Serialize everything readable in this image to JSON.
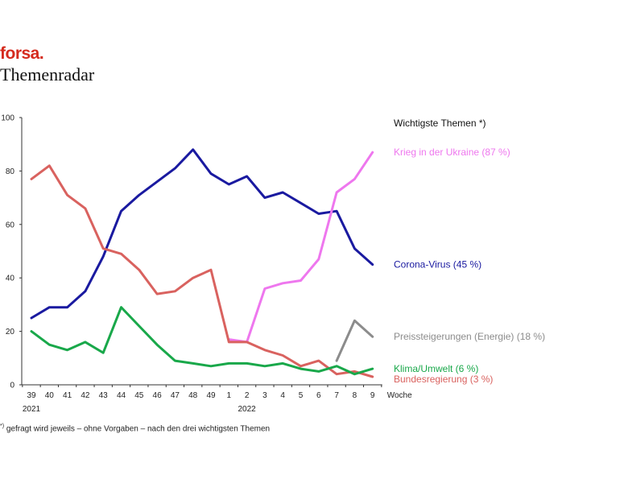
{
  "header": {
    "brand": "forsa.",
    "title": "Themenradar",
    "brand_color": "#d52b1e"
  },
  "footnote": {
    "mark": "*)",
    "text": " gefragt wird jeweils – ohne Vorgaben – nach den drei wichtigsten Themen"
  },
  "chart_data": {
    "type": "line",
    "title": "Wichtigste Themen *)",
    "xlabel": "Woche",
    "ylabel": "",
    "ylim": [
      0,
      100
    ],
    "yticks": [
      0,
      20,
      40,
      60,
      80,
      100
    ],
    "x": [
      "39",
      "40",
      "41",
      "42",
      "43",
      "44",
      "45",
      "46",
      "47",
      "48",
      "49",
      "1",
      "2",
      "3",
      "4",
      "5",
      "6",
      "7",
      "8",
      "9"
    ],
    "year_labels": [
      {
        "at": "39",
        "label": "2021"
      },
      {
        "at": "2",
        "label": "2022"
      }
    ],
    "grid": false,
    "series": [
      {
        "name": "Corona-Virus (45 %)",
        "color": "#1a1aa0",
        "values": [
          25,
          29,
          29,
          35,
          48,
          65,
          71,
          76,
          81,
          88,
          79,
          75,
          78,
          70,
          72,
          68,
          64,
          65,
          51,
          45
        ]
      },
      {
        "name": "Krieg in der Ukraine (87 %)",
        "color": "#ee77ee",
        "values": [
          null,
          null,
          null,
          null,
          null,
          null,
          null,
          null,
          null,
          null,
          null,
          17,
          16,
          36,
          38,
          39,
          47,
          72,
          77,
          87
        ]
      },
      {
        "name": "Bundesregierung (3 %)",
        "color": "#d9625f",
        "values": [
          77,
          82,
          71,
          66,
          51,
          49,
          43,
          34,
          35,
          40,
          43,
          16,
          16,
          13,
          11,
          7,
          9,
          4,
          5,
          3
        ]
      },
      {
        "name": "Klima/Umwelt (6 %)",
        "color": "#19a84a",
        "values": [
          20,
          15,
          13,
          16,
          12,
          29,
          22,
          15,
          9,
          8,
          7,
          8,
          8,
          7,
          8,
          6,
          5,
          7,
          4,
          6
        ]
      },
      {
        "name": "Preissteigerungen (Energie) (18 %)",
        "color": "#8c8c8c",
        "values": [
          null,
          null,
          null,
          null,
          null,
          null,
          null,
          null,
          null,
          null,
          null,
          null,
          null,
          null,
          null,
          null,
          null,
          9,
          24,
          18
        ]
      }
    ]
  }
}
